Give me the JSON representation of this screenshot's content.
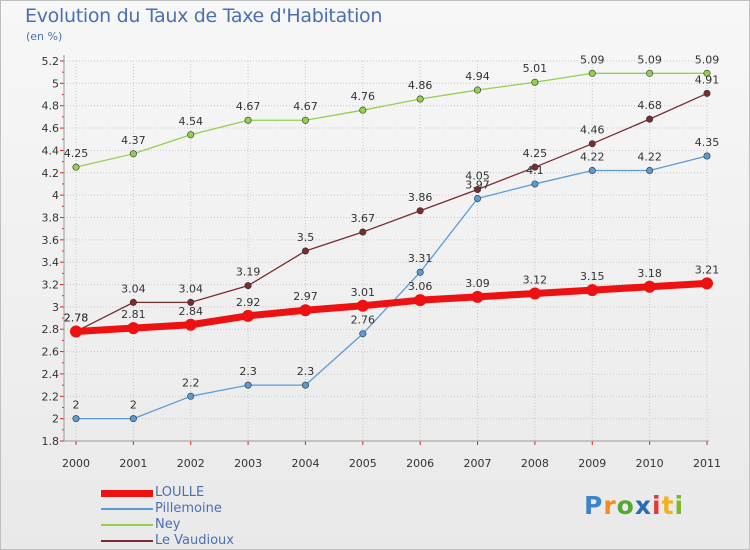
{
  "title": "Evolution du Taux de Taxe d'Habitation",
  "unit": "(en %)",
  "logo": {
    "letters": [
      {
        "ch": "P",
        "color": "#3d86c6"
      },
      {
        "ch": "r",
        "color": "#f28c1e"
      },
      {
        "ch": "o",
        "color": "#56a833"
      },
      {
        "ch": "x",
        "color": "#2c6cb3"
      },
      {
        "ch": "i",
        "color": "#e23a3a"
      },
      {
        "ch": "t",
        "color": "#f2b21e"
      },
      {
        "ch": "i",
        "color": "#7ab828"
      }
    ]
  },
  "chart_data": {
    "type": "line",
    "title": "Evolution du Taux de Taxe d'Habitation",
    "ylabel": "(en %)",
    "xlabel": "",
    "x": [
      "2000",
      "2001",
      "2002",
      "2003",
      "2004",
      "2005",
      "2006",
      "2007",
      "2008",
      "2009",
      "2010",
      "2011"
    ],
    "ylim": [
      1.8,
      5.2
    ],
    "yticks": [
      "1.8",
      "2",
      "2.2",
      "2.4",
      "2.6",
      "2.8",
      "3",
      "3.2",
      "3.4",
      "3.6",
      "3.8",
      "4",
      "4.2",
      "4.4",
      "4.6",
      "4.8",
      "5",
      "5.2"
    ],
    "grid": "horizontal dotted",
    "legend_position": "bottom-left",
    "series": [
      {
        "name": "LOULLE",
        "color": "#ee1111",
        "values": [
          2.78,
          2.81,
          2.84,
          2.92,
          2.97,
          3.01,
          3.06,
          3.09,
          3.12,
          3.15,
          3.18,
          3.21
        ],
        "labels": [
          "2.78",
          "2.81",
          "2.84",
          "2.92",
          "2.97",
          "3.01",
          "3.06",
          "3.09",
          "3.12",
          "3.15",
          "3.18",
          "3.21"
        ]
      },
      {
        "name": "Pillemoine",
        "color": "#5b9bd5",
        "values": [
          2,
          2,
          2.2,
          2.3,
          2.3,
          2.76,
          3.31,
          3.97,
          4.1,
          4.22,
          4.22,
          4.35
        ],
        "labels": [
          "2",
          "2",
          "2.2",
          "2.3",
          "2.3",
          "2.76",
          "3.31",
          "3.97",
          "4.1",
          "4.22",
          "4.22",
          "4.35"
        ]
      },
      {
        "name": "Ney",
        "color": "#92d050",
        "values": [
          4.25,
          4.37,
          4.54,
          4.67,
          4.67,
          4.76,
          4.86,
          4.94,
          5.01,
          5.09,
          5.09,
          5.09
        ],
        "labels": [
          "4.25",
          "4.37",
          "4.54",
          "4.67",
          "4.67",
          "4.76",
          "4.86",
          "4.94",
          "5.01",
          "5.09",
          "5.09",
          "5.09"
        ]
      },
      {
        "name": "Le Vaudioux",
        "color": "#7b2c2c",
        "values": [
          2.78,
          3.04,
          3.04,
          3.19,
          3.5,
          3.67,
          3.86,
          4.05,
          4.25,
          4.46,
          4.68,
          4.91
        ],
        "labels": [
          "2.78",
          "3.04",
          "3.04",
          "3.19",
          "3.5",
          "3.67",
          "3.86",
          "4.05",
          "4.25",
          "4.46",
          "4.68",
          "4.91"
        ]
      }
    ]
  }
}
